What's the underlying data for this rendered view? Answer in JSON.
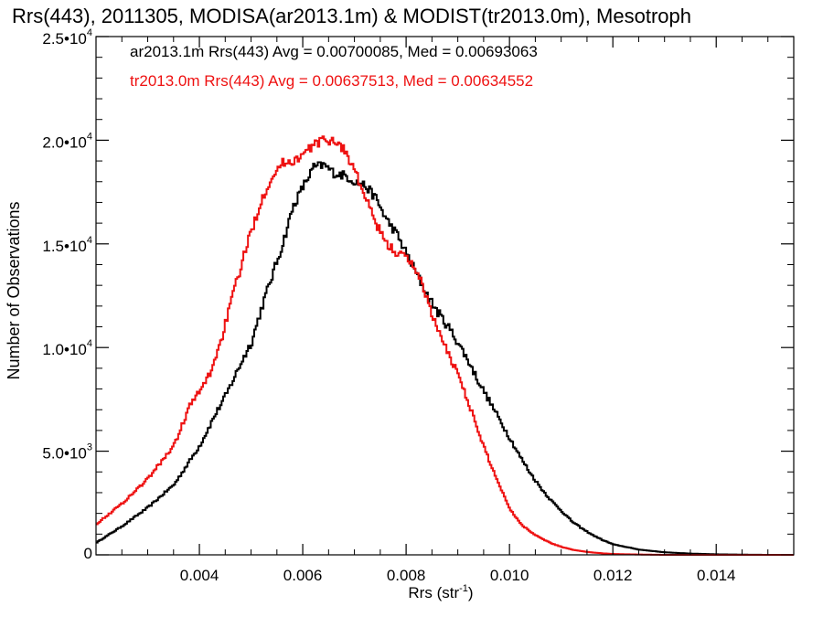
{
  "chart_data": {
    "type": "line",
    "title": "Rrs(443), 2011305, MODISA(ar2013.1m) & MODIST(tr2013.0m), Mesotroph",
    "xlabel": "Rrs (str",
    "xlabel_sup": "-1",
    "xlabel_close": ")",
    "ylabel": "Number of Observations",
    "xlim": [
      0.002,
      0.0155
    ],
    "ylim": [
      0,
      25000
    ],
    "x_ticks": [
      {
        "value": 0.004,
        "label": "0.004"
      },
      {
        "value": 0.006,
        "label": "0.006"
      },
      {
        "value": 0.008,
        "label": "0.008"
      },
      {
        "value": 0.01,
        "label": "0.010"
      },
      {
        "value": 0.012,
        "label": "0.012"
      },
      {
        "value": 0.014,
        "label": "0.014"
      }
    ],
    "y_ticks": [
      {
        "value": 0,
        "mantissa": "0",
        "exp": ""
      },
      {
        "value": 5000,
        "mantissa": "5.0•10",
        "exp": "3"
      },
      {
        "value": 10000,
        "mantissa": "1.0•10",
        "exp": "4"
      },
      {
        "value": 15000,
        "mantissa": "1.5•10",
        "exp": "4"
      },
      {
        "value": 20000,
        "mantissa": "2.0•10",
        "exp": "4"
      },
      {
        "value": 25000,
        "mantissa": "2.5•10",
        "exp": "4"
      }
    ],
    "legend": [
      {
        "text": "ar2013.1m Rrs(443) Avg = 0.00700085, Med = 0.00693063",
        "color": "#000000"
      },
      {
        "text": "tr2013.0m Rrs(443) Avg = 0.00637513, Med = 0.00634552",
        "color": "#ee1111"
      }
    ],
    "legend_position": "top-left",
    "series": [
      {
        "color": "#000000",
        "step": true,
        "points": [
          [
            0.002,
            600
          ],
          [
            0.0025,
            1400
          ],
          [
            0.003,
            2300
          ],
          [
            0.0035,
            3400
          ],
          [
            0.004,
            5300
          ],
          [
            0.0043,
            6800
          ],
          [
            0.0045,
            7700
          ],
          [
            0.0048,
            9300
          ],
          [
            0.005,
            10300
          ],
          [
            0.0052,
            12000
          ],
          [
            0.0054,
            13500
          ],
          [
            0.0056,
            15000
          ],
          [
            0.0058,
            16800
          ],
          [
            0.006,
            17800
          ],
          [
            0.0062,
            18700
          ],
          [
            0.0064,
            18800
          ],
          [
            0.0066,
            18400
          ],
          [
            0.0068,
            18300
          ],
          [
            0.007,
            18000
          ],
          [
            0.0072,
            17800
          ],
          [
            0.0074,
            17200
          ],
          [
            0.0076,
            16200
          ],
          [
            0.0078,
            15500
          ],
          [
            0.008,
            14500
          ],
          [
            0.0082,
            13500
          ],
          [
            0.0084,
            12500
          ],
          [
            0.0086,
            11700
          ],
          [
            0.0088,
            11000
          ],
          [
            0.009,
            10200
          ],
          [
            0.0092,
            9300
          ],
          [
            0.0094,
            8300
          ],
          [
            0.0096,
            7400
          ],
          [
            0.0098,
            6500
          ],
          [
            0.01,
            5600
          ],
          [
            0.0102,
            4700
          ],
          [
            0.0104,
            3900
          ],
          [
            0.0106,
            3200
          ],
          [
            0.0108,
            2600
          ],
          [
            0.011,
            2100
          ],
          [
            0.0112,
            1600
          ],
          [
            0.0114,
            1250
          ],
          [
            0.0116,
            950
          ],
          [
            0.0118,
            700
          ],
          [
            0.012,
            500
          ],
          [
            0.0125,
            250
          ],
          [
            0.013,
            120
          ],
          [
            0.0135,
            60
          ],
          [
            0.014,
            25
          ],
          [
            0.0145,
            10
          ],
          [
            0.015,
            0
          ],
          [
            0.0155,
            0
          ]
        ]
      },
      {
        "color": "#ee1111",
        "step": true,
        "points": [
          [
            0.002,
            1500
          ],
          [
            0.0025,
            2500
          ],
          [
            0.003,
            3700
          ],
          [
            0.0035,
            5300
          ],
          [
            0.0038,
            7200
          ],
          [
            0.004,
            7900
          ],
          [
            0.0042,
            8800
          ],
          [
            0.0044,
            10300
          ],
          [
            0.0046,
            12200
          ],
          [
            0.0048,
            14000
          ],
          [
            0.005,
            15700
          ],
          [
            0.0052,
            17200
          ],
          [
            0.0054,
            18300
          ],
          [
            0.0056,
            18900
          ],
          [
            0.0058,
            19000
          ],
          [
            0.006,
            19300
          ],
          [
            0.0062,
            19800
          ],
          [
            0.0064,
            20000
          ],
          [
            0.0066,
            20000
          ],
          [
            0.0068,
            19500
          ],
          [
            0.007,
            18500
          ],
          [
            0.0072,
            17200
          ],
          [
            0.0074,
            16000
          ],
          [
            0.0076,
            15000
          ],
          [
            0.0078,
            14600
          ],
          [
            0.008,
            14300
          ],
          [
            0.0082,
            13700
          ],
          [
            0.0084,
            12300
          ],
          [
            0.0086,
            10800
          ],
          [
            0.0088,
            9700
          ],
          [
            0.009,
            8700
          ],
          [
            0.0092,
            7300
          ],
          [
            0.0094,
            5800
          ],
          [
            0.0096,
            4500
          ],
          [
            0.0098,
            3300
          ],
          [
            0.01,
            2200
          ],
          [
            0.0102,
            1500
          ],
          [
            0.0104,
            1100
          ],
          [
            0.0106,
            800
          ],
          [
            0.0108,
            550
          ],
          [
            0.011,
            380
          ],
          [
            0.0112,
            250
          ],
          [
            0.0114,
            170
          ],
          [
            0.0116,
            110
          ],
          [
            0.0118,
            70
          ],
          [
            0.012,
            40
          ],
          [
            0.0125,
            15
          ],
          [
            0.013,
            0
          ],
          [
            0.0155,
            0
          ]
        ]
      }
    ]
  }
}
